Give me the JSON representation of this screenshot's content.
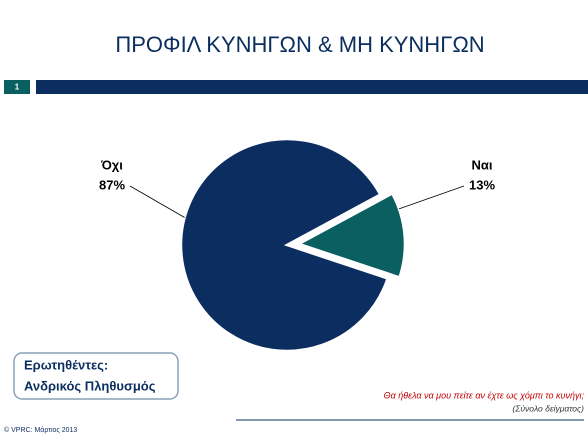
{
  "header": {
    "title": "ΠΡΟΦΙΛ ΚΥΝΗΓΩΝ & ΜΗ ΚΥΝΗΓΩΝ",
    "slide_number": "1"
  },
  "chart_data": {
    "type": "pie",
    "categories": [
      "Όχι",
      "Ναι"
    ],
    "values": [
      87,
      13
    ],
    "value_labels": [
      "87%",
      "13%"
    ],
    "colors": [
      "#0b2d5f",
      "#0a5f60"
    ],
    "exploded": [
      false,
      true
    ]
  },
  "respondents_box": {
    "label": "Ερωτηθέντες:",
    "value": "Ανδρικός Πληθυσμός"
  },
  "question": {
    "text": "Θα ήθελα να μου πείτε αν έχτε ως χόμπι το κυνήγι;",
    "note": "(Σύνολο δείγματος)"
  },
  "footer": {
    "copyright": "© VPRC: Μάρτιος 2013"
  }
}
